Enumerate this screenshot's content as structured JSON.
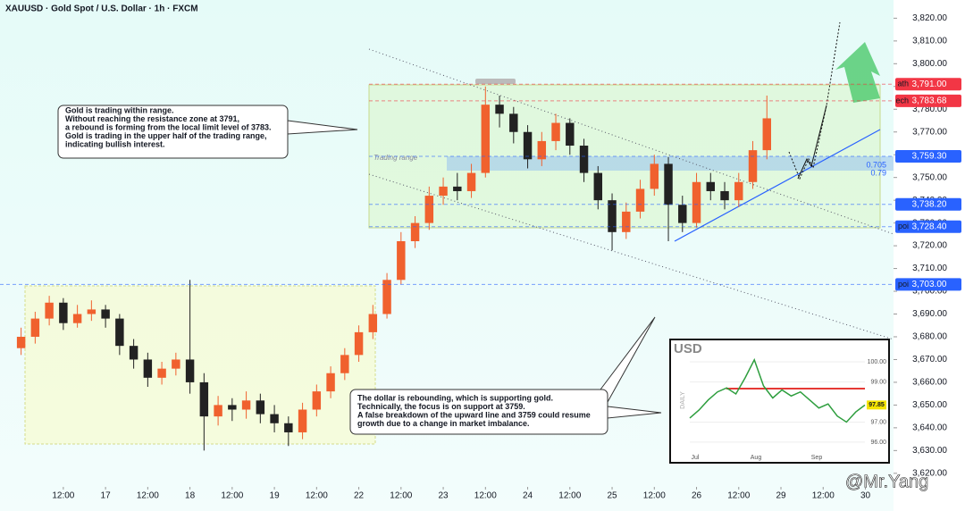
{
  "chart_data": {
    "type": "candlestick",
    "title": "XAUUSD · Gold Spot / U.S. Dollar · 1h · FXCM",
    "up_color": "#f0612e",
    "down_color": "#222222",
    "x": [
      0,
      4,
      8,
      12,
      16,
      20,
      24,
      28,
      32,
      36,
      40,
      44,
      48,
      52,
      56,
      60,
      64,
      68,
      72,
      76,
      80,
      84,
      88,
      92,
      96,
      100,
      104,
      108,
      112,
      116,
      120,
      124,
      128,
      132,
      136,
      140,
      144,
      148,
      152,
      156,
      160,
      164,
      168,
      172,
      176,
      180,
      184,
      188,
      192,
      196,
      200,
      204,
      208,
      212
    ],
    "open": [
      3675,
      3680,
      3688,
      3695,
      3686,
      3690,
      3692,
      3688,
      3676,
      3670,
      3662,
      3666,
      3670,
      3660,
      3645,
      3650,
      3648,
      3652,
      3646,
      3642,
      3638,
      3648,
      3656,
      3664,
      3672,
      3682,
      3690,
      3705,
      3722,
      3730,
      3742,
      3746,
      3744,
      3752,
      3782,
      3778,
      3770,
      3758,
      3766,
      3774,
      3764,
      3752,
      3740,
      3726,
      3735,
      3745,
      3756,
      3738,
      3730,
      3748,
      3744,
      3740,
      3748,
      3762
    ],
    "high": [
      3684,
      3691,
      3698,
      3697,
      3694,
      3696,
      3694,
      3690,
      3679,
      3673,
      3669,
      3673,
      3705,
      3664,
      3654,
      3653,
      3656,
      3655,
      3650,
      3645,
      3651,
      3659,
      3667,
      3675,
      3685,
      3694,
      3708,
      3726,
      3733,
      3746,
      3750,
      3752,
      3756,
      3790,
      3786,
      3781,
      3773,
      3770,
      3778,
      3776,
      3767,
      3755,
      3743,
      3739,
      3749,
      3760,
      3759,
      3742,
      3752,
      3752,
      3748,
      3752,
      3766,
      3786
    ],
    "low": [
      3672,
      3677,
      3685,
      3683,
      3684,
      3687,
      3684,
      3672,
      3666,
      3658,
      3659,
      3663,
      3655,
      3630,
      3641,
      3643,
      3644,
      3642,
      3638,
      3632,
      3635,
      3645,
      3653,
      3661,
      3669,
      3679,
      3688,
      3703,
      3719,
      3727,
      3738,
      3740,
      3741,
      3750,
      3772,
      3765,
      3754,
      3755,
      3762,
      3760,
      3748,
      3736,
      3718,
      3723,
      3732,
      3742,
      3722,
      3726,
      3728,
      3740,
      3736,
      3737,
      3745,
      3758
    ],
    "close": [
      3680,
      3688,
      3695,
      3686,
      3690,
      3692,
      3688,
      3676,
      3670,
      3662,
      3666,
      3670,
      3660,
      3645,
      3650,
      3648,
      3652,
      3646,
      3642,
      3638,
      3648,
      3656,
      3664,
      3672,
      3682,
      3690,
      3705,
      3722,
      3730,
      3742,
      3746,
      3744,
      3752,
      3782,
      3778,
      3770,
      3758,
      3766,
      3774,
      3764,
      3752,
      3740,
      3726,
      3735,
      3745,
      3756,
      3738,
      3730,
      3748,
      3744,
      3740,
      3748,
      3762,
      3776
    ],
    "xlim": [
      -6,
      248
    ],
    "xticks": [
      {
        "value": 12,
        "label": "12:00"
      },
      {
        "value": 24,
        "label": "17"
      },
      {
        "value": 36,
        "label": "12:00"
      },
      {
        "value": 48,
        "label": "18"
      },
      {
        "value": 60,
        "label": "12:00"
      },
      {
        "value": 72,
        "label": "19"
      },
      {
        "value": 84,
        "label": "12:00"
      },
      {
        "value": 96,
        "label": "22"
      },
      {
        "value": 108,
        "label": "12:00"
      },
      {
        "value": 120,
        "label": "23"
      },
      {
        "value": 132,
        "label": "12:00"
      },
      {
        "value": 144,
        "label": "24"
      },
      {
        "value": 156,
        "label": "12:00"
      },
      {
        "value": 168,
        "label": "25"
      },
      {
        "value": 180,
        "label": "12:00"
      },
      {
        "value": 192,
        "label": "26"
      },
      {
        "value": 204,
        "label": "12:00"
      },
      {
        "value": 216,
        "label": "29"
      },
      {
        "value": 228,
        "label": "12:00"
      },
      {
        "value": 240,
        "label": "30"
      }
    ],
    "ylim": [
      3616,
      3828
    ],
    "yticks": [
      {
        "value": 3620,
        "label": "3,620.00"
      },
      {
        "value": 3630,
        "label": "3,630.00"
      },
      {
        "value": 3640,
        "label": "3,640.00"
      },
      {
        "value": 3650,
        "label": "3,650.00"
      },
      {
        "value": 3660,
        "label": "3,660.00"
      },
      {
        "value": 3670,
        "label": "3,670.00"
      },
      {
        "value": 3680,
        "label": "3,680.00"
      },
      {
        "value": 3690,
        "label": "3,690.00"
      },
      {
        "value": 3700,
        "label": "3,700.00"
      },
      {
        "value": 3710,
        "label": "3,710.00"
      },
      {
        "value": 3720,
        "label": "3,720.00"
      },
      {
        "value": 3730,
        "label": "3,730.00"
      },
      {
        "value": 3740,
        "label": "3,740.00"
      },
      {
        "value": 3750,
        "label": "3,750.00"
      },
      {
        "value": 3760,
        "label": "3,760.00"
      },
      {
        "value": 3770,
        "label": "3,770.00"
      },
      {
        "value": 3780,
        "label": "3,780.00"
      },
      {
        "value": 3790,
        "label": "3,790.00"
      },
      {
        "value": 3800,
        "label": "3,800.00"
      },
      {
        "value": 3810,
        "label": "3,810.00"
      },
      {
        "value": 3820,
        "label": "3,820.00"
      }
    ],
    "levels": [
      {
        "value": 3791,
        "label": "3,791.00",
        "tag": "ath",
        "color": "#f23645"
      },
      {
        "value": 3783.68,
        "label": "3,783.68",
        "tag": "ech",
        "color": "#f23645"
      },
      {
        "value": 3759.3,
        "label": "3,759.30",
        "color": "#2962ff"
      },
      {
        "value": 3738.2,
        "label": "3,738.20",
        "color": "#2962ff"
      },
      {
        "value": 3728.4,
        "label": "3,728.40",
        "tag": "poi",
        "color": "#2962ff"
      },
      {
        "value": 3703,
        "label": "3,703.00",
        "tag": "poi",
        "color": "#2962ff"
      }
    ],
    "annotations": {
      "range": "Trading range",
      "fib_a": "0.705",
      "fib_b": "0.79",
      "note1": [
        "Gold is trading within range.",
        "Without reaching the resistance zone at 3791,",
        "a rebound is forming from the local limit level of 3783.",
        "Gold is trading in the upper half of the trading range,",
        "indicating bullish interest."
      ],
      "note2": [
        "The dollar is rebounding, which is supporting gold.",
        "Technically, the focus is on support at 3759.",
        "A false breakdown of the upward line and 3759 could resume",
        "growth due to a change in market imbalance."
      ],
      "watermark": "@Mr.Yang"
    },
    "inset": {
      "title": "USD",
      "side_label": "DAILY",
      "months": [
        "Jul",
        "Aug",
        "Sep"
      ],
      "color": "#2e9e3e",
      "values": [
        97.2,
        97.6,
        98.1,
        98.5,
        98.7,
        98.4,
        99.2,
        100.1,
        98.8,
        98.2,
        98.6,
        98.3,
        98.5,
        98.1,
        97.7,
        97.9,
        97.3,
        97.0,
        97.5,
        97.85
      ],
      "ylim": [
        95.24,
        100.98
      ],
      "yticks": [
        {
          "value": 100,
          "label": "100.00"
        },
        {
          "value": 99,
          "label": "99.00"
        },
        {
          "value": 97,
          "label": "97.00"
        },
        {
          "value": 96,
          "label": "96.00"
        }
      ],
      "last": {
        "value": 97.85,
        "label": "97.85"
      }
    }
  }
}
